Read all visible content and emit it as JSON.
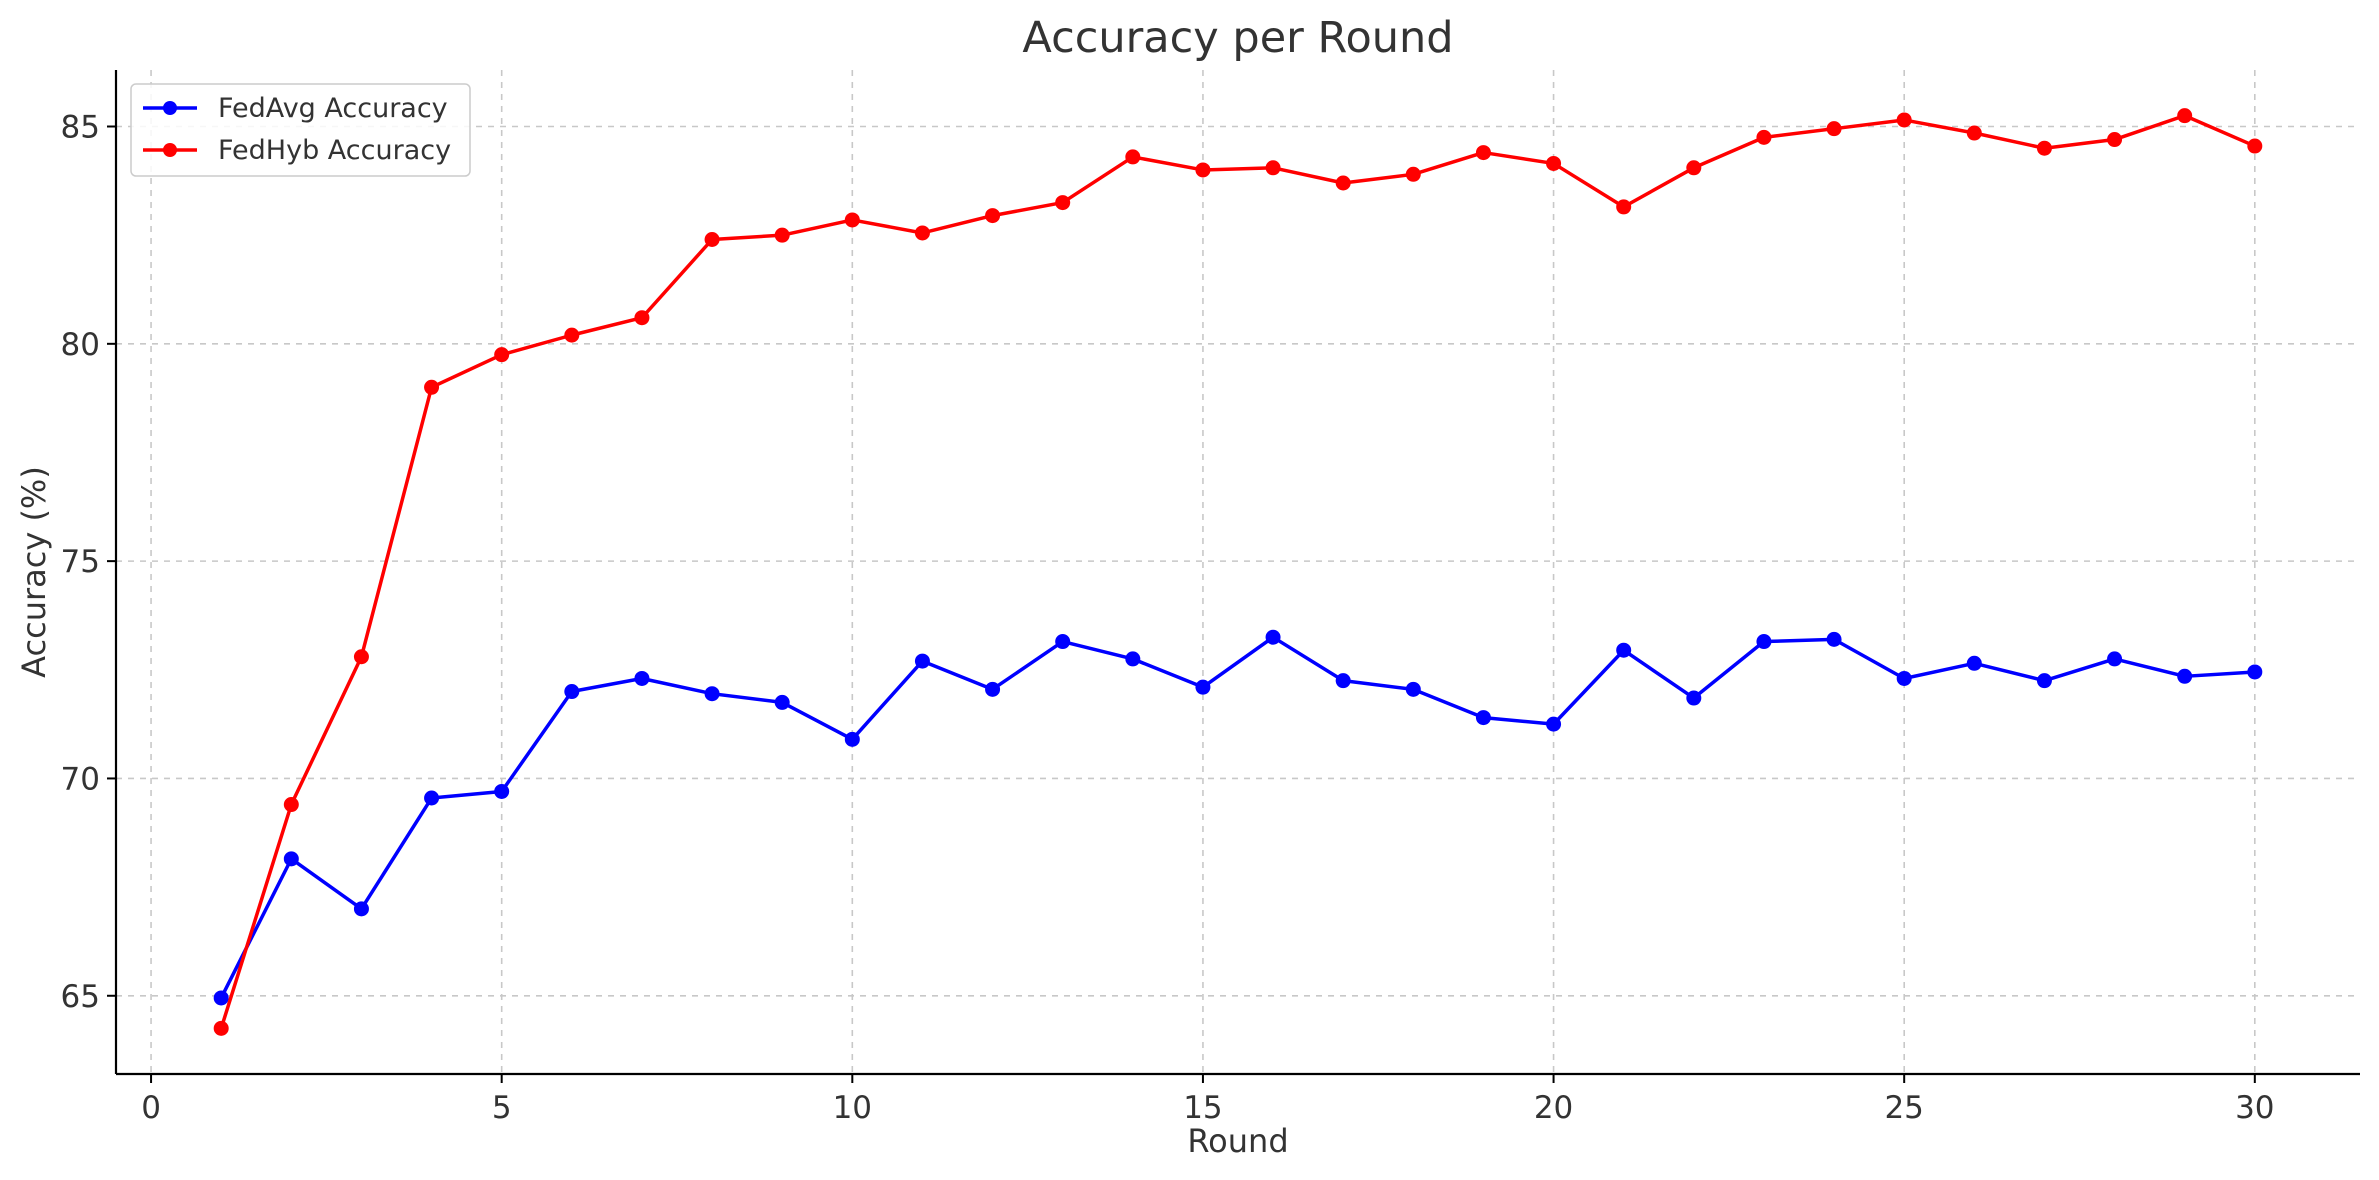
{
  "chart_data": {
    "type": "line",
    "title": "Accuracy per Round",
    "xlabel": "Round",
    "ylabel": "Accuracy (%)",
    "xlim": [
      -0.5,
      31.5
    ],
    "ylim": [
      63.2,
      86.3
    ],
    "xticks": [
      0,
      5,
      10,
      15,
      20,
      25,
      30
    ],
    "yticks": [
      65,
      70,
      75,
      80,
      85
    ],
    "grid": true,
    "legend_position": "top-left",
    "x": [
      1,
      2,
      3,
      4,
      5,
      6,
      7,
      8,
      9,
      10,
      11,
      12,
      13,
      14,
      15,
      16,
      17,
      18,
      19,
      20,
      21,
      22,
      23,
      24,
      25,
      26,
      27,
      28,
      29,
      30
    ],
    "series": [
      {
        "name": "FedAvg Accuracy",
        "color": "#0000ff",
        "marker": "circle",
        "values": [
          64.95,
          68.15,
          67.0,
          69.55,
          69.7,
          72.0,
          72.3,
          71.95,
          71.75,
          70.9,
          72.7,
          72.05,
          73.15,
          72.75,
          72.1,
          73.25,
          72.25,
          72.05,
          71.4,
          71.25,
          72.95,
          71.85,
          73.15,
          73.2,
          72.3,
          72.65,
          72.25,
          72.75,
          72.35,
          72.45
        ]
      },
      {
        "name": "FedHyb Accuracy",
        "color": "#ff0000",
        "marker": "circle",
        "values": [
          64.25,
          69.4,
          72.8,
          79.0,
          79.75,
          80.2,
          80.6,
          82.4,
          82.5,
          82.85,
          82.55,
          82.95,
          83.25,
          84.3,
          84.0,
          84.05,
          83.7,
          83.9,
          84.4,
          84.15,
          83.15,
          84.05,
          84.75,
          84.95,
          85.15,
          84.85,
          84.5,
          84.7,
          85.25,
          84.55
        ]
      }
    ]
  }
}
